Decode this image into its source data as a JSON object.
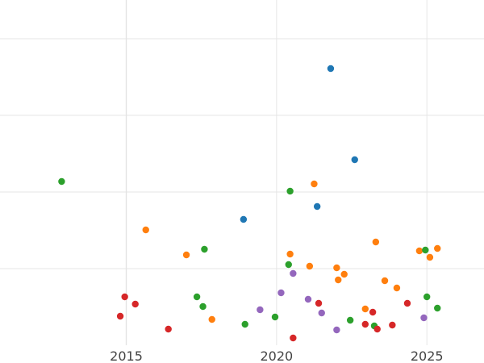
{
  "chart_data": {
    "type": "scatter",
    "title": "",
    "xlabel": "",
    "ylabel": "",
    "x_ticks": [
      "2015",
      "2020",
      "2025"
    ],
    "x_tick_values": [
      2015,
      2020,
      2025
    ],
    "xlim": [
      2010.8,
      2026.9
    ],
    "ylim": [
      0,
      450
    ],
    "grid": true,
    "legend": "none",
    "series": [
      {
        "color": "#1f77b4",
        "points": [
          {
            "x": 2021.8,
            "y": 85
          },
          {
            "x": 2022.6,
            "y": 198
          },
          {
            "x": 2021.35,
            "y": 256
          },
          {
            "x": 2018.9,
            "y": 272
          }
        ]
      },
      {
        "color": "#ff7f0e",
        "points": [
          {
            "x": 2021.25,
            "y": 228
          },
          {
            "x": 2015.65,
            "y": 285
          },
          {
            "x": 2023.3,
            "y": 300
          },
          {
            "x": 2025.35,
            "y": 308
          },
          {
            "x": 2024.75,
            "y": 311
          },
          {
            "x": 2020.45,
            "y": 315
          },
          {
            "x": 2017.0,
            "y": 316
          },
          {
            "x": 2025.1,
            "y": 319
          },
          {
            "x": 2021.1,
            "y": 330
          },
          {
            "x": 2022.0,
            "y": 332
          },
          {
            "x": 2022.25,
            "y": 340
          },
          {
            "x": 2022.05,
            "y": 347
          },
          {
            "x": 2023.6,
            "y": 348
          },
          {
            "x": 2024.0,
            "y": 357
          },
          {
            "x": 2022.95,
            "y": 383
          },
          {
            "x": 2017.85,
            "y": 396
          }
        ]
      },
      {
        "color": "#2ca02c",
        "points": [
          {
            "x": 2012.85,
            "y": 225
          },
          {
            "x": 2020.45,
            "y": 237
          },
          {
            "x": 2017.6,
            "y": 309
          },
          {
            "x": 2024.95,
            "y": 310
          },
          {
            "x": 2020.4,
            "y": 328
          },
          {
            "x": 2017.35,
            "y": 368
          },
          {
            "x": 2025.0,
            "y": 368
          },
          {
            "x": 2017.55,
            "y": 380
          },
          {
            "x": 2025.35,
            "y": 382
          },
          {
            "x": 2019.95,
            "y": 393
          },
          {
            "x": 2022.45,
            "y": 397
          },
          {
            "x": 2018.95,
            "y": 402
          },
          {
            "x": 2023.25,
            "y": 404
          }
        ]
      },
      {
        "color": "#d62728",
        "points": [
          {
            "x": 2014.95,
            "y": 368
          },
          {
            "x": 2015.3,
            "y": 377
          },
          {
            "x": 2021.4,
            "y": 376
          },
          {
            "x": 2024.35,
            "y": 376
          },
          {
            "x": 2023.2,
            "y": 387
          },
          {
            "x": 2014.8,
            "y": 392
          },
          {
            "x": 2022.95,
            "y": 402
          },
          {
            "x": 2023.85,
            "y": 403
          },
          {
            "x": 2016.4,
            "y": 408
          },
          {
            "x": 2023.35,
            "y": 408
          },
          {
            "x": 2020.55,
            "y": 419
          }
        ]
      },
      {
        "color": "#9467bd",
        "points": [
          {
            "x": 2020.55,
            "y": 339
          },
          {
            "x": 2020.15,
            "y": 363
          },
          {
            "x": 2021.05,
            "y": 371
          },
          {
            "x": 2019.45,
            "y": 384
          },
          {
            "x": 2021.5,
            "y": 388
          },
          {
            "x": 2024.9,
            "y": 394
          },
          {
            "x": 2022.0,
            "y": 409
          }
        ]
      }
    ]
  }
}
